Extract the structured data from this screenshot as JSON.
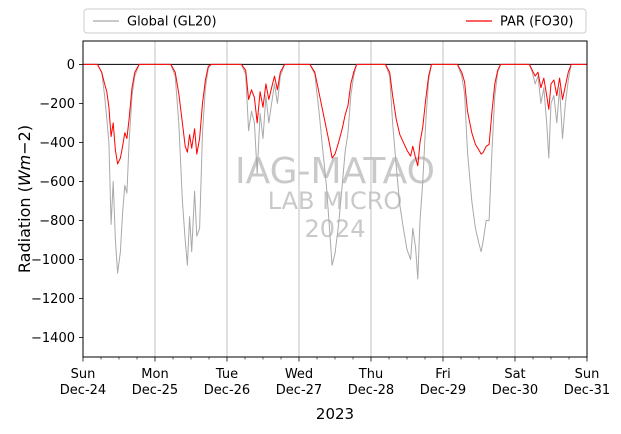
{
  "chart_data": {
    "type": "line",
    "xlabel": "2023",
    "ylabel": "Radiation (Wm−2)",
    "ylabel_parts": {
      "base": "Radiation (",
      "italic": "Wm",
      "tail": "−2)"
    },
    "xlim": [
      0,
      7
    ],
    "ylim": [
      -1500,
      120
    ],
    "yticks": [
      0,
      -200,
      -400,
      -600,
      -800,
      -1000,
      -1200,
      -1400
    ],
    "xtick_labels": [
      {
        "day": "Sun",
        "date": "Dec-24"
      },
      {
        "day": "Mon",
        "date": "Dec-25"
      },
      {
        "day": "Tue",
        "date": "Dec-26"
      },
      {
        "day": "Wed",
        "date": "Dec-27"
      },
      {
        "day": "Thu",
        "date": "Dec-28"
      },
      {
        "day": "Fri",
        "date": "Dec-29"
      },
      {
        "day": "Sat",
        "date": "Dec-30"
      },
      {
        "day": "Sun",
        "date": "Dec-31"
      }
    ],
    "grid": "vertical-major",
    "zero_line": true,
    "legend": {
      "placement": "above",
      "ncol": 2
    },
    "watermark": [
      "IAG-MATAO",
      "LAB MICRO",
      "2024"
    ],
    "series": [
      {
        "name": "Global (GL20)",
        "color": "#a9a9a9",
        "points": [
          [
            0,
            0
          ],
          [
            0.2,
            0
          ],
          [
            0.26,
            -40
          ],
          [
            0.3,
            -160
          ],
          [
            0.33,
            -280
          ],
          [
            0.36,
            -400
          ],
          [
            0.39,
            -820
          ],
          [
            0.42,
            -600
          ],
          [
            0.45,
            -900
          ],
          [
            0.48,
            -1070
          ],
          [
            0.52,
            -960
          ],
          [
            0.55,
            -760
          ],
          [
            0.58,
            -620
          ],
          [
            0.61,
            -660
          ],
          [
            0.64,
            -400
          ],
          [
            0.68,
            -160
          ],
          [
            0.72,
            -60
          ],
          [
            0.78,
            0
          ],
          [
            1.22,
            0
          ],
          [
            1.28,
            -60
          ],
          [
            1.33,
            -300
          ],
          [
            1.38,
            -700
          ],
          [
            1.42,
            -900
          ],
          [
            1.45,
            -1030
          ],
          [
            1.48,
            -780
          ],
          [
            1.51,
            -960
          ],
          [
            1.55,
            -650
          ],
          [
            1.58,
            -880
          ],
          [
            1.62,
            -840
          ],
          [
            1.66,
            -350
          ],
          [
            1.7,
            -120
          ],
          [
            1.74,
            -20
          ],
          [
            1.78,
            0
          ],
          [
            2.2,
            0
          ],
          [
            2.26,
            -50
          ],
          [
            2.3,
            -340
          ],
          [
            2.34,
            -240
          ],
          [
            2.38,
            -300
          ],
          [
            2.42,
            -560
          ],
          [
            2.46,
            -250
          ],
          [
            2.5,
            -380
          ],
          [
            2.54,
            -160
          ],
          [
            2.58,
            -300
          ],
          [
            2.62,
            -200
          ],
          [
            2.66,
            -100
          ],
          [
            2.7,
            -200
          ],
          [
            2.74,
            -60
          ],
          [
            2.8,
            0
          ],
          [
            3.15,
            0
          ],
          [
            3.22,
            -50
          ],
          [
            3.28,
            -250
          ],
          [
            3.32,
            -400
          ],
          [
            3.38,
            -620
          ],
          [
            3.42,
            -820
          ],
          [
            3.46,
            -1030
          ],
          [
            3.5,
            -970
          ],
          [
            3.55,
            -820
          ],
          [
            3.6,
            -620
          ],
          [
            3.64,
            -450
          ],
          [
            3.68,
            -350
          ],
          [
            3.72,
            -160
          ],
          [
            3.76,
            -60
          ],
          [
            3.8,
            0
          ],
          [
            4.2,
            0
          ],
          [
            4.26,
            -60
          ],
          [
            4.3,
            -300
          ],
          [
            4.35,
            -520
          ],
          [
            4.4,
            -720
          ],
          [
            4.45,
            -840
          ],
          [
            4.5,
            -950
          ],
          [
            4.55,
            -1000
          ],
          [
            4.58,
            -840
          ],
          [
            4.62,
            -940
          ],
          [
            4.65,
            -1100
          ],
          [
            4.68,
            -800
          ],
          [
            4.72,
            -600
          ],
          [
            4.76,
            -300
          ],
          [
            4.8,
            -80
          ],
          [
            4.84,
            0
          ],
          [
            5.2,
            0
          ],
          [
            5.26,
            -60
          ],
          [
            5.3,
            -150
          ],
          [
            5.34,
            -450
          ],
          [
            5.4,
            -700
          ],
          [
            5.45,
            -840
          ],
          [
            5.5,
            -920
          ],
          [
            5.53,
            -960
          ],
          [
            5.56,
            -900
          ],
          [
            5.6,
            -800
          ],
          [
            5.64,
            -800
          ],
          [
            5.68,
            -440
          ],
          [
            5.72,
            -160
          ],
          [
            5.76,
            -40
          ],
          [
            5.8,
            0
          ],
          [
            6.2,
            0
          ],
          [
            6.24,
            -40
          ],
          [
            6.28,
            -100
          ],
          [
            6.32,
            -60
          ],
          [
            6.36,
            -200
          ],
          [
            6.4,
            -120
          ],
          [
            6.44,
            -300
          ],
          [
            6.47,
            -480
          ],
          [
            6.5,
            -200
          ],
          [
            6.54,
            -160
          ],
          [
            6.58,
            -300
          ],
          [
            6.62,
            -120
          ],
          [
            6.66,
            -380
          ],
          [
            6.7,
            -200
          ],
          [
            6.74,
            -80
          ],
          [
            6.78,
            0
          ],
          [
            7,
            0
          ]
        ]
      },
      {
        "name": "PAR (FO30)",
        "color": "#ff0000",
        "points": [
          [
            0,
            0
          ],
          [
            0.2,
            0
          ],
          [
            0.26,
            -40
          ],
          [
            0.3,
            -100
          ],
          [
            0.33,
            -140
          ],
          [
            0.36,
            -220
          ],
          [
            0.39,
            -370
          ],
          [
            0.42,
            -300
          ],
          [
            0.45,
            -440
          ],
          [
            0.48,
            -510
          ],
          [
            0.52,
            -480
          ],
          [
            0.55,
            -420
          ],
          [
            0.58,
            -350
          ],
          [
            0.61,
            -380
          ],
          [
            0.64,
            -280
          ],
          [
            0.68,
            -120
          ],
          [
            0.72,
            -40
          ],
          [
            0.78,
            0
          ],
          [
            1.22,
            0
          ],
          [
            1.28,
            -40
          ],
          [
            1.33,
            -150
          ],
          [
            1.38,
            -300
          ],
          [
            1.42,
            -420
          ],
          [
            1.45,
            -450
          ],
          [
            1.48,
            -360
          ],
          [
            1.51,
            -430
          ],
          [
            1.55,
            -330
          ],
          [
            1.58,
            -460
          ],
          [
            1.62,
            -380
          ],
          [
            1.66,
            -200
          ],
          [
            1.7,
            -80
          ],
          [
            1.74,
            -10
          ],
          [
            1.78,
            0
          ],
          [
            2.2,
            0
          ],
          [
            2.26,
            -30
          ],
          [
            2.3,
            -180
          ],
          [
            2.34,
            -130
          ],
          [
            2.38,
            -170
          ],
          [
            2.42,
            -300
          ],
          [
            2.46,
            -140
          ],
          [
            2.5,
            -220
          ],
          [
            2.54,
            -100
          ],
          [
            2.58,
            -180
          ],
          [
            2.62,
            -120
          ],
          [
            2.66,
            -60
          ],
          [
            2.7,
            -130
          ],
          [
            2.74,
            -40
          ],
          [
            2.8,
            0
          ],
          [
            3.15,
            0
          ],
          [
            3.22,
            -40
          ],
          [
            3.28,
            -150
          ],
          [
            3.32,
            -220
          ],
          [
            3.38,
            -330
          ],
          [
            3.42,
            -400
          ],
          [
            3.46,
            -480
          ],
          [
            3.5,
            -460
          ],
          [
            3.55,
            -400
          ],
          [
            3.6,
            -330
          ],
          [
            3.64,
            -260
          ],
          [
            3.68,
            -210
          ],
          [
            3.72,
            -100
          ],
          [
            3.76,
            -40
          ],
          [
            3.8,
            0
          ],
          [
            4.2,
            0
          ],
          [
            4.26,
            -40
          ],
          [
            4.3,
            -160
          ],
          [
            4.35,
            -280
          ],
          [
            4.4,
            -360
          ],
          [
            4.45,
            -400
          ],
          [
            4.5,
            -440
          ],
          [
            4.55,
            -470
          ],
          [
            4.58,
            -420
          ],
          [
            4.62,
            -480
          ],
          [
            4.65,
            -520
          ],
          [
            4.68,
            -400
          ],
          [
            4.72,
            -320
          ],
          [
            4.76,
            -180
          ],
          [
            4.8,
            -60
          ],
          [
            4.84,
            0
          ],
          [
            5.2,
            0
          ],
          [
            5.26,
            -40
          ],
          [
            5.3,
            -90
          ],
          [
            5.34,
            -240
          ],
          [
            5.4,
            -350
          ],
          [
            5.45,
            -410
          ],
          [
            5.5,
            -440
          ],
          [
            5.53,
            -460
          ],
          [
            5.56,
            -450
          ],
          [
            5.6,
            -420
          ],
          [
            5.64,
            -410
          ],
          [
            5.68,
            -240
          ],
          [
            5.72,
            -100
          ],
          [
            5.76,
            -30
          ],
          [
            5.8,
            0
          ],
          [
            6.2,
            0
          ],
          [
            6.24,
            -30
          ],
          [
            6.28,
            -60
          ],
          [
            6.32,
            -40
          ],
          [
            6.36,
            -120
          ],
          [
            6.4,
            -70
          ],
          [
            6.44,
            -160
          ],
          [
            6.47,
            -230
          ],
          [
            6.5,
            -100
          ],
          [
            6.54,
            -80
          ],
          [
            6.58,
            -160
          ],
          [
            6.62,
            -70
          ],
          [
            6.66,
            -180
          ],
          [
            6.7,
            -110
          ],
          [
            6.74,
            -40
          ],
          [
            6.78,
            0
          ],
          [
            7,
            0
          ]
        ]
      }
    ]
  }
}
